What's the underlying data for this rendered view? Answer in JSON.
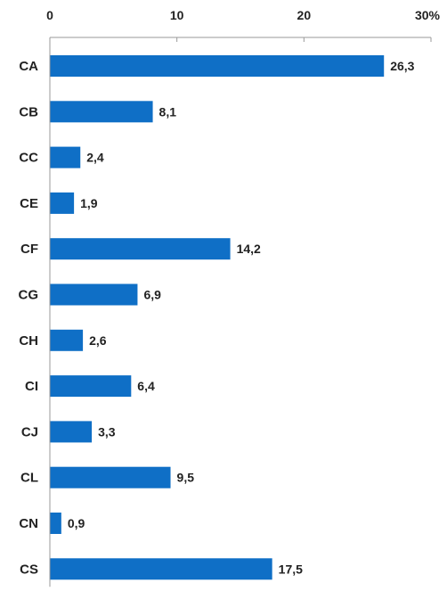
{
  "chart_data": {
    "type": "bar",
    "orientation": "horizontal",
    "categories": [
      "CA",
      "CB",
      "CC",
      "CE",
      "CF",
      "CG",
      "CH",
      "CI",
      "CJ",
      "CL",
      "CN",
      "CS"
    ],
    "values": [
      26.3,
      8.1,
      2.4,
      1.9,
      14.2,
      6.9,
      2.6,
      6.4,
      3.3,
      9.5,
      0.9,
      17.5
    ],
    "value_labels": [
      "26,3",
      "8,1",
      "2,4",
      "1,9",
      "14,2",
      "6,9",
      "2,6",
      "6,4",
      "3,3",
      "9,5",
      "0,9",
      "17,5"
    ],
    "x_ticks": [
      0,
      10,
      20,
      30
    ],
    "x_tick_labels": [
      "0",
      "10",
      "20",
      "30%"
    ],
    "xlim": [
      0,
      30
    ],
    "x_axis_position": "top",
    "grid": false,
    "legend": "none",
    "bar_color": "#0f6fc6"
  }
}
